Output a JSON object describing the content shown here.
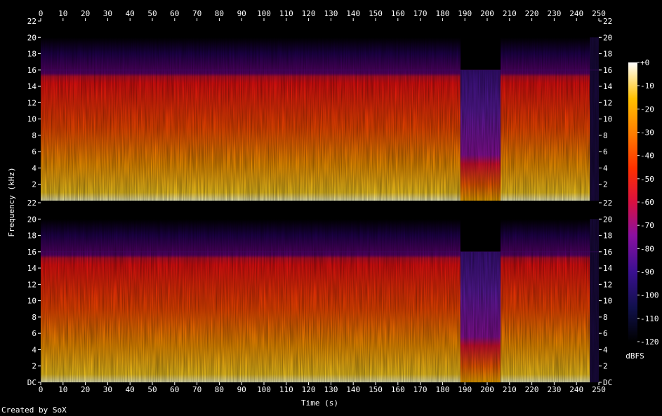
{
  "chart_data": {
    "type": "heatmap",
    "subtype": "spectrogram",
    "channels": 2,
    "xlabel": "Time (s)",
    "ylabel": "Frequency (kHz)",
    "xlim": [
      0,
      250
    ],
    "ylim": [
      0,
      22
    ],
    "x_ticks": [
      0,
      10,
      20,
      30,
      40,
      50,
      60,
      70,
      80,
      90,
      100,
      110,
      120,
      130,
      140,
      150,
      160,
      170,
      180,
      190,
      200,
      210,
      220,
      230,
      240,
      250
    ],
    "x_tick_labels": [
      "0",
      "10",
      "20",
      "30",
      "40",
      "50",
      "60",
      "70",
      "80",
      "90",
      "100",
      "110",
      "120",
      "130",
      "140",
      "150",
      "160",
      "170",
      "180",
      "190",
      "200",
      "210",
      "220",
      "230",
      "240",
      "250"
    ],
    "y_ticks": [
      0,
      2,
      4,
      6,
      8,
      10,
      12,
      14,
      16,
      18,
      20,
      22
    ],
    "y_tick_labels": [
      "DC",
      "2",
      "4",
      "6",
      "8",
      "10",
      "12",
      "14",
      "16",
      "18",
      "20",
      "22"
    ],
    "colorbar": {
      "label": "dBFS",
      "range": [
        -120,
        0
      ],
      "ticks": [
        0,
        -10,
        -20,
        -30,
        -40,
        -50,
        -60,
        -70,
        -80,
        -90,
        -100,
        -110,
        -120
      ],
      "tick_labels": [
        "+0",
        "-10",
        "-20",
        "-30",
        "-40",
        "-50",
        "-60",
        "-70",
        "-80",
        "-90",
        "-100",
        "-110",
        "-120"
      ]
    },
    "spectral_segments": [
      {
        "start": 0,
        "end": 188,
        "cutoff_khz": 16,
        "top_khz": 20,
        "level": "loud"
      },
      {
        "start": 188,
        "end": 206,
        "cutoff_khz": 16,
        "top_khz": 16,
        "level": "quiet"
      },
      {
        "start": 206,
        "end": 246,
        "cutoff_khz": 16,
        "top_khz": 20,
        "level": "loud"
      },
      {
        "start": 246,
        "end": 250,
        "cutoff_khz": 16,
        "top_khz": 20,
        "level": "fade"
      }
    ],
    "grid": false,
    "legend": "right"
  },
  "footer": {
    "credit": "Created by SoX"
  }
}
